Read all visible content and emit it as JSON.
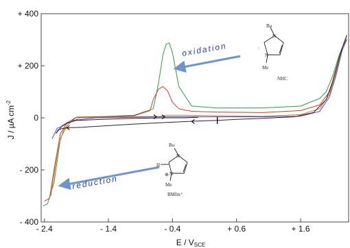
{
  "chart_data": {
    "type": "line",
    "title": "",
    "xlabel": "E / V",
    "xlabel_sub": "SCE",
    "ylabel": "J / µA cm",
    "ylabel_sup": "-2",
    "xlim": [
      -2.45,
      2.35
    ],
    "ylim": [
      -400,
      400
    ],
    "x_ticks": [
      {
        "v": -2.4,
        "label": "- 2.4"
      },
      {
        "v": -1.4,
        "label": "- 1.4"
      },
      {
        "v": -0.4,
        "label": "- 0.4"
      },
      {
        "v": 0.6,
        "label": "+ 0.6"
      },
      {
        "v": 1.6,
        "label": "+ 1.6"
      }
    ],
    "y_ticks": [
      {
        "v": 400,
        "label": "+ 400"
      },
      {
        "v": 200,
        "label": "+ 200"
      },
      {
        "v": 0,
        "label": "0"
      },
      {
        "v": -200,
        "label": "- 200"
      },
      {
        "v": -400,
        "label": "- 400"
      }
    ],
    "grid": false,
    "series": [
      {
        "color": "#2e9e3e",
        "x": [
          -2.42,
          -2.35,
          -2.25,
          -2.15,
          -2.05,
          -1.9,
          -1.5,
          -1.0,
          -0.7,
          -0.62,
          -0.55,
          -0.5,
          -0.45,
          -0.4,
          -0.3,
          -0.1,
          0.3,
          1.0,
          1.6,
          1.9,
          2.0,
          2.1,
          2.2,
          2.3,
          2.32
        ]
      },
      {
        "color": "#2e9e3e",
        "y": [
          -338,
          -330,
          -250,
          -80,
          -30,
          3,
          5,
          10,
          35,
          130,
          240,
          282,
          288,
          250,
          120,
          45,
          38,
          38,
          45,
          75,
          100,
          160,
          240,
          300,
          320
        ]
      },
      {
        "color": "#d8382e",
        "x": [
          -2.4,
          -2.32,
          -2.25,
          -2.15,
          -2.05,
          -1.9,
          -1.5,
          -1.0,
          -0.75,
          -0.7,
          -0.62,
          -0.55,
          -0.48,
          -0.4,
          -0.3,
          -0.1,
          0.3,
          1.0,
          1.6,
          1.9,
          2.05,
          2.15,
          2.25,
          2.32
        ],
        "y": [
          -320,
          -310,
          -200,
          -60,
          -20,
          2,
          4,
          8,
          28,
          70,
          110,
          120,
          105,
          60,
          35,
          25,
          22,
          20,
          28,
          50,
          100,
          180,
          270,
          300
        ]
      },
      {
        "color": "#c07828",
        "x": [
          -2.3,
          -2.25,
          -2.18,
          -2.1,
          -2.0,
          -1.85,
          -1.4,
          -1.0,
          -0.6,
          -0.5,
          -0.2,
          0.3,
          1.0,
          1.6,
          1.9,
          2.05,
          2.15,
          2.25,
          2.32
        ],
        "y": [
          -300,
          -220,
          -110,
          -45,
          -18,
          0,
          3,
          5,
          5,
          10,
          10,
          8,
          6,
          12,
          35,
          90,
          170,
          270,
          305
        ]
      },
      {
        "color": "#4a4ad0",
        "x": [
          -2.28,
          -2.24,
          -2.2,
          -2.12,
          -2.05,
          -1.95,
          -1.6,
          -1.0,
          -0.5,
          0.0,
          0.5,
          1.0,
          1.6,
          1.9,
          2.05,
          2.15,
          2.25,
          2.32
        ],
        "y": [
          -80,
          -60,
          -40,
          -32,
          -22,
          -10,
          0,
          2,
          4,
          4,
          4,
          4,
          6,
          25,
          80,
          160,
          260,
          300
        ]
      },
      {
        "color": "#3a1c1c",
        "x": [
          -2.22,
          -2.18,
          -2.1,
          -2.0,
          -1.8,
          -1.4,
          -1.0,
          -0.5,
          0.0,
          0.3,
          0.6,
          1.0,
          1.5,
          1.8,
          2.0,
          2.1,
          2.2,
          2.28,
          2.32
        ],
        "y": [
          -60,
          -45,
          -40,
          -38,
          -36,
          -30,
          -24,
          -18,
          -12,
          -10,
          -6,
          -2,
          4,
          20,
          70,
          140,
          230,
          290,
          315
        ]
      },
      {
        "color": "#3a1c1c",
        "x": [
          -2.22,
          -2.18,
          -2.12,
          -2.05,
          -1.9,
          -1.5,
          -1.0,
          -0.5,
          -0.2,
          0.0
        ],
        "y": [
          -60,
          -48,
          -30,
          -20,
          -10,
          -6,
          -2,
          0,
          0,
          2
        ]
      }
    ],
    "annotations": [
      {
        "text": "oxidation"
      },
      {
        "text": "reduction"
      }
    ]
  },
  "structures": {
    "nhc": {
      "substituent_top": "Bu",
      "n_top": "N",
      "n_bottom": "N",
      "substituent_bottom": "Me",
      "carbene_mark": ":",
      "label": "NHC"
    },
    "bmim": {
      "substituent_top": "Bu",
      "h_label": "H",
      "n_top": "N",
      "n_bottom": "N",
      "charge": "⊕",
      "substituent_bottom": "Me",
      "label": "BMIm⁺"
    }
  }
}
